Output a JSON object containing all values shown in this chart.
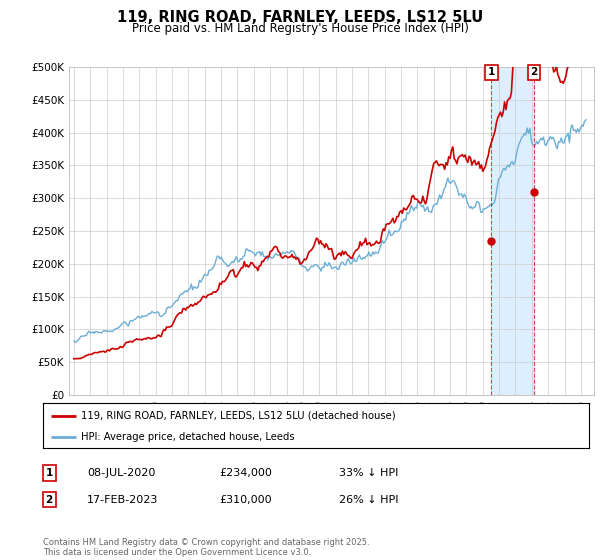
{
  "title": "119, RING ROAD, FARNLEY, LEEDS, LS12 5LU",
  "subtitle": "Price paid vs. HM Land Registry's House Price Index (HPI)",
  "ylim": [
    0,
    500000
  ],
  "yticks": [
    0,
    50000,
    100000,
    150000,
    200000,
    250000,
    300000,
    350000,
    400000,
    450000,
    500000
  ],
  "ytick_labels": [
    "£0",
    "£50K",
    "£100K",
    "£150K",
    "£200K",
    "£250K",
    "£300K",
    "£350K",
    "£400K",
    "£450K",
    "£500K"
  ],
  "xlim_start": 1994.7,
  "xlim_end": 2026.8,
  "hpi_color": "#6baed6",
  "property_color": "#cc0000",
  "dashed_color": "#cc0000",
  "shade_color": "#ddeeff",
  "point1_x": 2020.52,
  "point1_y": 234000,
  "point1_label": "1",
  "point2_x": 2023.13,
  "point2_y": 310000,
  "point2_label": "2",
  "legend_line1": "119, RING ROAD, FARNLEY, LEEDS, LS12 5LU (detached house)",
  "legend_line2": "HPI: Average price, detached house, Leeds",
  "annotation1_num": "1",
  "annotation1_date": "08-JUL-2020",
  "annotation1_price": "£234,000",
  "annotation1_hpi": "33% ↓ HPI",
  "annotation2_num": "2",
  "annotation2_date": "17-FEB-2023",
  "annotation2_price": "£310,000",
  "annotation2_hpi": "26% ↓ HPI",
  "footer": "Contains HM Land Registry data © Crown copyright and database right 2025.\nThis data is licensed under the Open Government Licence v3.0.",
  "background_color": "#ffffff",
  "grid_color": "#cccccc"
}
